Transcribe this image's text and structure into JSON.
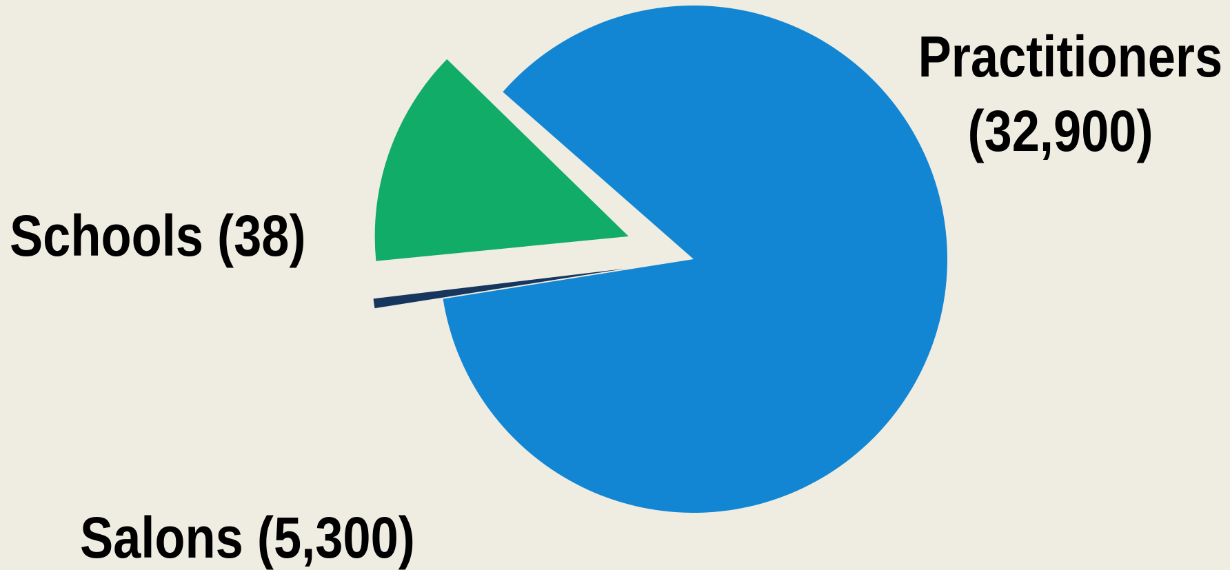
{
  "chart_data": {
    "type": "pie",
    "categories": [
      "Practitioners",
      "Schools",
      "Salons"
    ],
    "values": [
      32900,
      38,
      5300
    ],
    "slices": [
      {
        "name": "Practitioners",
        "value": 32900,
        "label_line1": "Practitioners",
        "label_line2": "(32,900)",
        "color": "#1386D3",
        "exploded": false
      },
      {
        "name": "Schools",
        "value": 38,
        "label_line1": "Schools (38)",
        "color": "#17365D",
        "exploded": true
      },
      {
        "name": "Salons",
        "value": 5300,
        "label_line1": "Salons (5,300)",
        "color": "#11AC68",
        "exploded": true
      }
    ],
    "legend": "none",
    "background": "#EFECE1"
  }
}
